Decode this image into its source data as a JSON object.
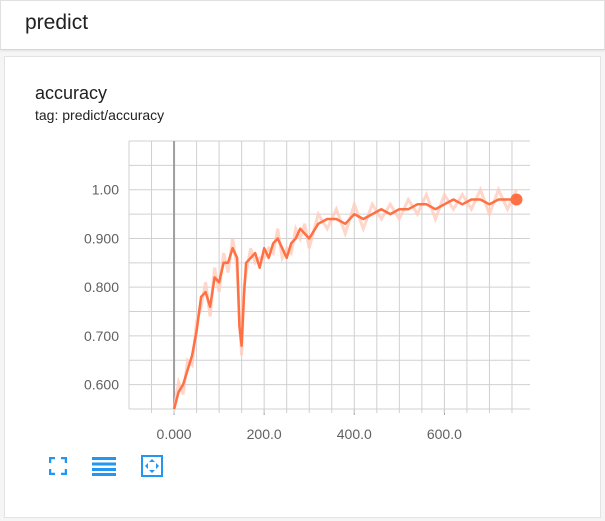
{
  "header": {
    "title": "predict"
  },
  "card": {
    "title": "accuracy",
    "tag": "tag: predict/accuracy"
  },
  "colors": {
    "series": "#ff7043",
    "series_raw": "#ffccbc",
    "axis": "#9e9e9e",
    "grid": "#d0d0d0",
    "icon": "#2196f3"
  },
  "toolbar": [
    {
      "icon": "fullscreen-icon"
    },
    {
      "icon": "list-icon"
    },
    {
      "icon": "fit-domain-icon"
    }
  ],
  "chart_data": {
    "type": "line",
    "title": "accuracy",
    "x_ticks": [
      "0.000",
      "200.0",
      "400.0",
      "600.0"
    ],
    "y_ticks": [
      "0.600",
      "0.700",
      "0.800",
      "0.900",
      "1.00"
    ],
    "xlim": [
      -100,
      790
    ],
    "ylim": [
      0.55,
      1.1
    ],
    "grid": true,
    "series": [
      {
        "x": [
          0,
          10,
          20,
          30,
          40,
          50,
          60,
          70,
          80,
          90,
          100,
          110,
          120,
          130,
          140,
          145,
          150,
          155,
          160,
          170,
          180,
          190,
          200,
          210,
          220,
          230,
          240,
          250,
          260,
          270,
          280,
          290,
          300,
          320,
          340,
          360,
          380,
          400,
          420,
          440,
          460,
          480,
          500,
          520,
          540,
          560,
          580,
          600,
          620,
          640,
          660,
          680,
          700,
          720,
          740,
          760
        ],
        "y": [
          0.55,
          0.585,
          0.6,
          0.63,
          0.66,
          0.71,
          0.78,
          0.79,
          0.76,
          0.82,
          0.81,
          0.85,
          0.85,
          0.88,
          0.86,
          0.72,
          0.68,
          0.78,
          0.85,
          0.86,
          0.87,
          0.84,
          0.88,
          0.86,
          0.89,
          0.9,
          0.88,
          0.86,
          0.89,
          0.9,
          0.92,
          0.91,
          0.9,
          0.93,
          0.94,
          0.94,
          0.93,
          0.95,
          0.94,
          0.95,
          0.96,
          0.95,
          0.96,
          0.96,
          0.97,
          0.97,
          0.96,
          0.97,
          0.98,
          0.97,
          0.98,
          0.98,
          0.97,
          0.98,
          0.98,
          0.98
        ]
      }
    ]
  }
}
